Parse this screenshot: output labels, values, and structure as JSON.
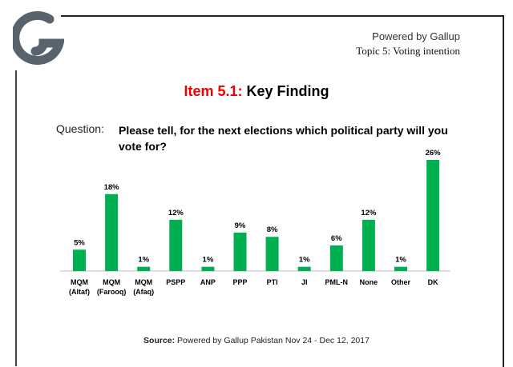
{
  "header": {
    "logo_letter": "G",
    "powered": "Powered by Gallup",
    "topic": "Topic 5: Voting intention"
  },
  "title": {
    "item": "Item 5.1:",
    "text": " Key Finding"
  },
  "question": {
    "label": "Question:",
    "text": "Please tell, for the next elections which political party will you vote for?"
  },
  "source": {
    "label": "Source:",
    "text": " Powered by Gallup Pakistan Nov 24 - Dec 12, 2017"
  },
  "colors": {
    "bar": "#00b050",
    "title_accent": "#ee0000",
    "logo": "#59636e"
  },
  "chart_data": {
    "type": "bar",
    "categories": [
      [
        "MQM",
        "(Altaf)"
      ],
      [
        "MQM",
        "(Farooq)"
      ],
      [
        "MQM",
        "(Afaq)"
      ],
      [
        "PSPP"
      ],
      [
        "ANP"
      ],
      [
        "PPP"
      ],
      [
        "PTI"
      ],
      [
        "JI"
      ],
      [
        "PML-N"
      ],
      [
        "None"
      ],
      [
        "Other"
      ],
      [
        "DK"
      ]
    ],
    "values": [
      5,
      18,
      1,
      12,
      1,
      9,
      8,
      1,
      6,
      12,
      1,
      26
    ],
    "data_labels": [
      "5%",
      "18%",
      "1%",
      "12%",
      "1%",
      "9%",
      "8%",
      "1%",
      "6%",
      "12%",
      "1%",
      "26%"
    ],
    "ylim": [
      0,
      26
    ],
    "grid": false
  }
}
